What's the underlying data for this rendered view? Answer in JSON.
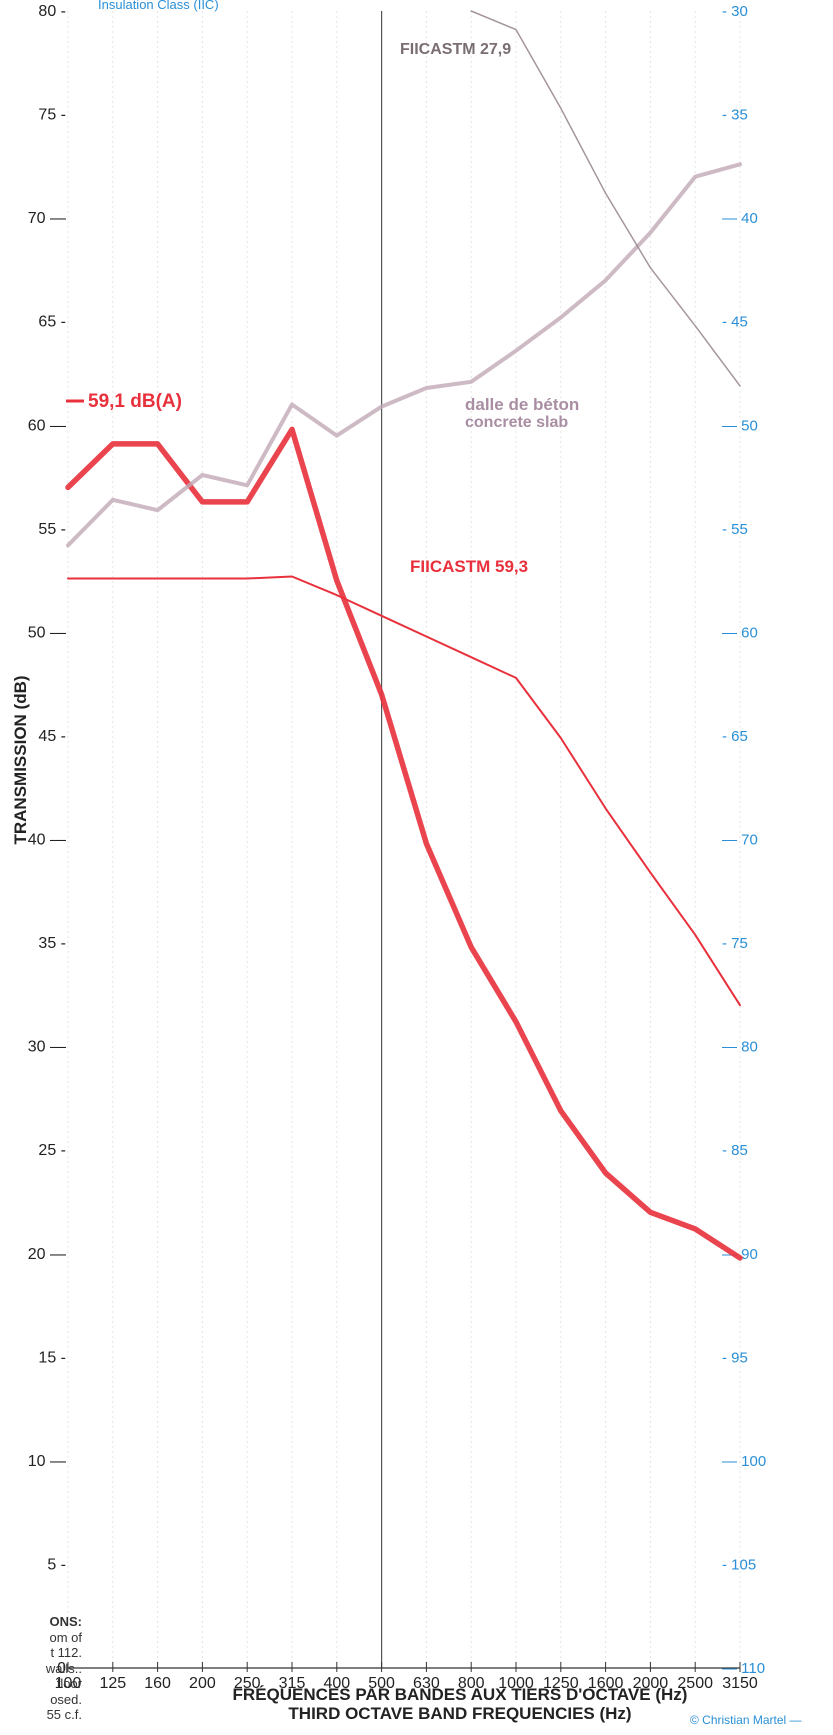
{
  "chart_data": {
    "type": "line",
    "top_label": "Insulation Class (IIC)",
    "ylabel": "TRANSMISSION (dB)",
    "xlabel_fr": "FRÉQUENCES PAR BANDES AUX TIERS D'OCTAVE (Hz)",
    "xlabel_en": "THIRD OCTAVE BAND FREQUENCIES (Hz)",
    "categories": [
      "100",
      "125",
      "160",
      "200",
      "250",
      "315",
      "400",
      "500",
      "630",
      "800",
      "1000",
      "1250",
      "1600",
      "2000",
      "2500",
      "3150"
    ],
    "ylim_left": [
      0,
      80
    ],
    "yticks_left": [
      80,
      75,
      70,
      65,
      60,
      55,
      50,
      45,
      40,
      35,
      30,
      25,
      20,
      15,
      10,
      5,
      0
    ],
    "yticks_left_labels": [
      "80 -",
      "75 -",
      "70 —",
      "65 -",
      "60 —",
      "55 -",
      "50 —",
      "45 -",
      "40 —",
      "35 -",
      "30 —",
      "25 -",
      "20 —",
      "15 -",
      "10 —",
      "5 -",
      "0"
    ],
    "yticks_right": [
      30,
      35,
      40,
      45,
      50,
      55,
      60,
      65,
      70,
      75,
      80,
      85,
      90,
      95,
      100,
      105,
      110
    ],
    "yticks_right_labels": [
      "- 30",
      "- 35",
      "— 40",
      "- 45",
      "— 50",
      "- 55",
      "— 60",
      "- 65",
      "— 70",
      "- 75",
      "— 80",
      "- 85",
      "— 90",
      "- 95",
      "— 100",
      "- 105",
      "— 110"
    ],
    "series": [
      {
        "name": "59,1 dB(A)",
        "color": "#e8313c",
        "values": [
          57.0,
          59.1,
          59.1,
          56.3,
          56.3,
          59.8,
          52.5,
          47.0,
          39.8,
          34.8,
          31.2,
          26.9,
          23.9,
          22.0,
          21.2,
          19.8
        ]
      },
      {
        "name": "FIICASTM 59,3",
        "color": "#e8313c",
        "values": [
          52.6,
          52.6,
          52.6,
          52.6,
          52.6,
          52.7,
          51.8,
          50.8,
          49.8,
          48.8,
          47.8,
          44.9,
          41.5,
          38.4,
          35.4,
          32.0
        ]
      },
      {
        "name": "dalle de béton / concrete slab",
        "color": "#c2a9b5",
        "values": [
          54.2,
          56.4,
          55.9,
          57.6,
          57.1,
          61.0,
          59.5,
          60.9,
          61.8,
          62.1,
          63.6,
          65.2,
          67.0,
          69.3,
          72.0,
          72.6
        ]
      },
      {
        "name": "FIICASTM 27,9",
        "color": "#9a8a92",
        "values": [
          null,
          null,
          null,
          null,
          null,
          null,
          null,
          null,
          null,
          80.0,
          79.1,
          75.3,
          71.2,
          67.6,
          64.8,
          61.9
        ]
      }
    ],
    "annotations": {
      "level_label": "59,1 dB(A)",
      "fiic_high": "FIICASTM 59,3",
      "fiic_low": "FIICASTM 27,9",
      "slab_fr": "dalle de béton",
      "slab_en": "concrete slab"
    },
    "grid": "vertical",
    "highlight_category": "500",
    "legend": "none"
  },
  "side_note": [
    "ONS:",
    "om of",
    "t 112.",
    "walls..",
    "floor",
    "osed.",
    "55 c.f."
  ],
  "copyright": "© Christian Martel —",
  "colors": {
    "left_axis": "#222222",
    "right_axis": "#2a8fd6",
    "main_line": "#e8313c",
    "slab_line": "#c2a9b5"
  }
}
